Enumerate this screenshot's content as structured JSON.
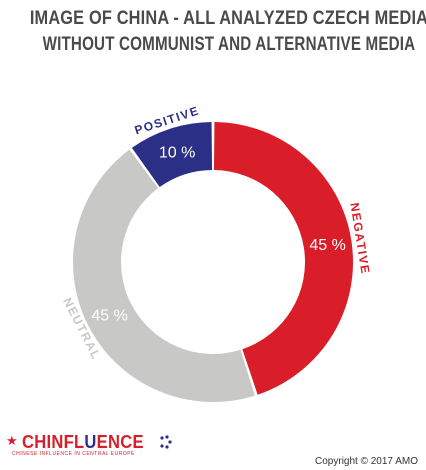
{
  "title_line1": "IMAGE OF CHINA - ALL ANALYZED CZECH MEDIA",
  "title_line2": "WITHOUT COMMUNIST AND ALTERNATIVE MEDIA",
  "chart_data": {
    "type": "pie",
    "title": "IMAGE OF CHINA - ALL ANALYZED CZECH MEDIA WITHOUT COMMUNIST AND ALTERNATIVE MEDIA",
    "donut": true,
    "categories": [
      "NEGATIVE",
      "NEUTRAL",
      "POSITIVE"
    ],
    "values": [
      45,
      45,
      10
    ],
    "value_labels": [
      "45 %",
      "45 %",
      "10 %"
    ],
    "colors": [
      "#d91e2a",
      "#c8c8c6",
      "#2b2f86"
    ],
    "label_colors": [
      "#d91e2a",
      "#c8c8c6",
      "#2b2f86"
    ]
  },
  "footer": {
    "logo_text": "CHINFLUENCE",
    "logo_subtitle": "CHINESE INFLUENCE IN CENTRAL EUROPE",
    "copyright": "Copyright © 2017 AMO"
  }
}
